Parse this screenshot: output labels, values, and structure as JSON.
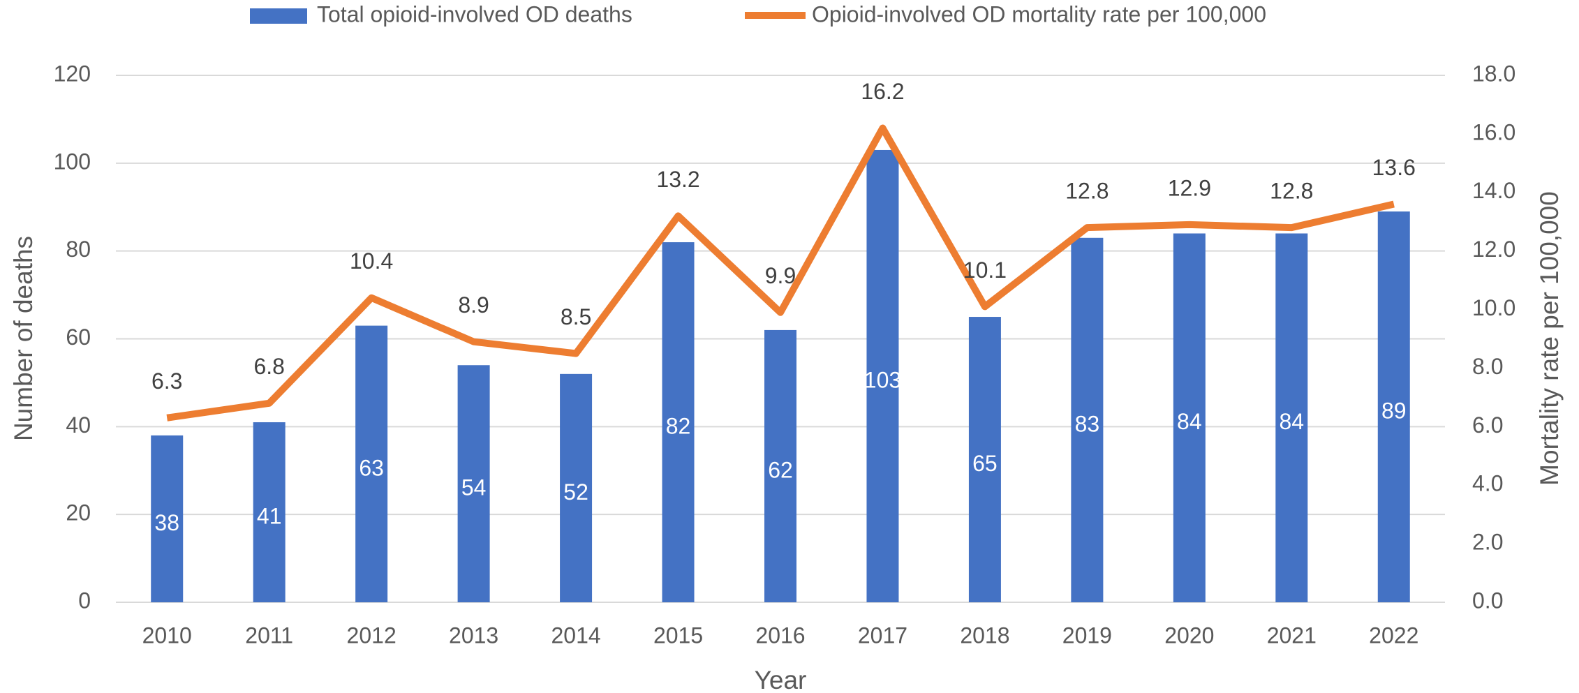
{
  "chart_data": {
    "type": "bar",
    "x_label": "Year",
    "y_label": "Number of deaths",
    "y2_label": "Mortality rate per 100,000",
    "categories": [
      "2010",
      "2011",
      "2012",
      "2013",
      "2014",
      "2015",
      "2016",
      "2017",
      "2018",
      "2019",
      "2020",
      "2021",
      "2022"
    ],
    "series": [
      {
        "name": "Total opioid-involved OD deaths",
        "type": "bar",
        "color": "#4472c4",
        "values": [
          38,
          41,
          63,
          54,
          52,
          82,
          62,
          103,
          65,
          83,
          84,
          84,
          89
        ]
      },
      {
        "name": "Opioid-involved OD mortality rate per 100,000",
        "type": "line",
        "axis": "y2",
        "color": "#ed7d31",
        "values": [
          6.3,
          6.8,
          10.4,
          8.9,
          8.5,
          13.2,
          9.9,
          16.2,
          10.1,
          12.8,
          12.9,
          12.8,
          13.6
        ]
      }
    ],
    "ylim": [
      0,
      120
    ],
    "yticks": [
      0,
      20,
      40,
      60,
      80,
      100,
      120
    ],
    "y2lim": [
      0,
      18
    ],
    "y2ticks": [
      {
        "value": 0,
        "label": "0.0"
      },
      {
        "value": 2,
        "label": "2.0"
      },
      {
        "value": 4,
        "label": "4.0"
      },
      {
        "value": 6,
        "label": "6.0"
      },
      {
        "value": 8,
        "label": "8.0"
      },
      {
        "value": 10,
        "label": "10.0"
      },
      {
        "value": 12,
        "label": "12.0"
      },
      {
        "value": 14,
        "label": "14.0"
      },
      {
        "value": 16,
        "label": "16.0"
      },
      {
        "value": 18,
        "label": "18.0"
      }
    ],
    "grid": true,
    "legend": "top"
  }
}
